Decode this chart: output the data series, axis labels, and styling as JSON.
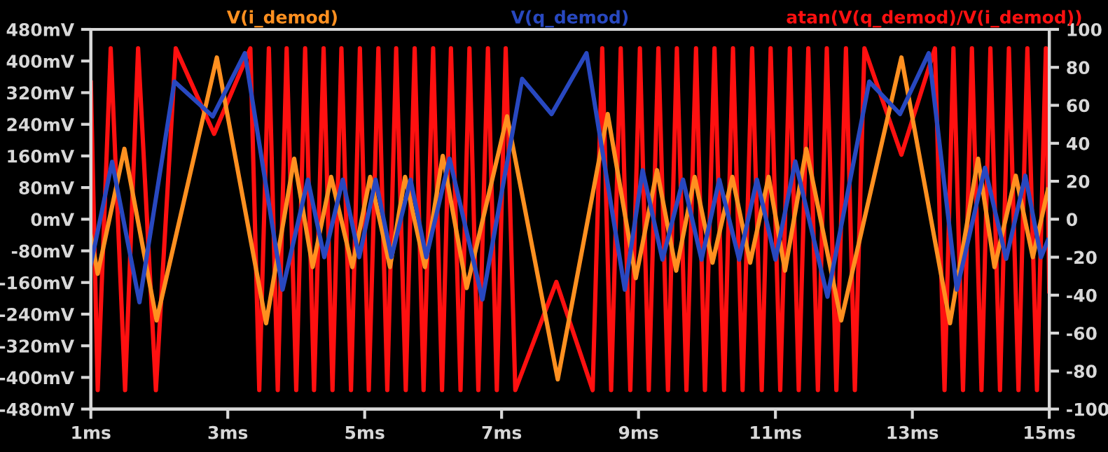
{
  "chart_data": {
    "type": "line",
    "legend": "top",
    "grid": false,
    "line_style": "solid",
    "marker": "none",
    "xlim": [
      1,
      15
    ],
    "xticks": [
      {
        "value": 1,
        "label": "1ms"
      },
      {
        "value": 3,
        "label": "3ms"
      },
      {
        "value": 5,
        "label": "5ms"
      },
      {
        "value": 7,
        "label": "7ms"
      },
      {
        "value": 9,
        "label": "9ms"
      },
      {
        "value": 11,
        "label": "11ms"
      },
      {
        "value": 13,
        "label": "13ms"
      },
      {
        "value": 15,
        "label": "15ms"
      }
    ],
    "ylim": [
      -480,
      480
    ],
    "yticks": [
      {
        "value": -480,
        "label": "-480mV"
      },
      {
        "value": -400,
        "label": "-400mV"
      },
      {
        "value": -320,
        "label": "-320mV"
      },
      {
        "value": -240,
        "label": "-240mV"
      },
      {
        "value": -160,
        "label": "-160mV"
      },
      {
        "value": -80,
        "label": "-80mV"
      },
      {
        "value": 0,
        "label": "0mV"
      },
      {
        "value": 80,
        "label": "80mV"
      },
      {
        "value": 160,
        "label": "160mV"
      },
      {
        "value": 240,
        "label": "240mV"
      },
      {
        "value": 320,
        "label": "320mV"
      },
      {
        "value": 400,
        "label": "400mV"
      },
      {
        "value": 480,
        "label": "480mV"
      }
    ],
    "y2lim": [
      -100,
      100
    ],
    "y2ticks": [
      -100,
      -80,
      -60,
      -40,
      -20,
      0,
      20,
      40,
      60,
      80,
      100
    ],
    "series": [
      {
        "name": "V(i_demod)",
        "color": "#ff9020",
        "x": [
          1.0,
          1.1,
          1.49,
          1.96,
          2.84,
          3.56,
          3.97,
          4.24,
          4.51,
          4.82,
          5.08,
          5.37,
          5.59,
          5.88,
          6.14,
          6.49,
          7.08,
          7.82,
          8.55,
          8.96,
          9.27,
          9.55,
          9.82,
          10.08,
          10.37,
          10.63,
          10.9,
          11.14,
          11.45,
          11.96,
          12.84,
          13.55,
          13.96,
          14.2,
          14.51,
          14.76,
          14.98
        ],
        "values": [
          -43,
          -138,
          178,
          -256,
          409,
          -263,
          153,
          -121,
          107,
          -121,
          107,
          -121,
          107,
          -121,
          160,
          -174,
          260,
          -405,
          266,
          -149,
          124,
          -130,
          107,
          -110,
          107,
          -110,
          107,
          -130,
          178,
          -256,
          409,
          -263,
          153,
          -121,
          110,
          -96,
          75
        ]
      },
      {
        "name": "V(q_demod)",
        "color": "#2848c0",
        "x": [
          1.0,
          1.31,
          1.71,
          2.22,
          2.78,
          3.25,
          3.8,
          4.17,
          4.41,
          4.68,
          4.92,
          5.16,
          5.39,
          5.67,
          5.9,
          6.24,
          6.72,
          7.3,
          7.73,
          8.24,
          8.8,
          9.06,
          9.35,
          9.65,
          9.92,
          10.18,
          10.47,
          10.73,
          11.0,
          11.29,
          11.76,
          12.37,
          12.82,
          13.24,
          13.65,
          14.06,
          14.37,
          14.65,
          14.88,
          14.98
        ],
        "values": [
          -114,
          145,
          -210,
          348,
          260,
          420,
          -178,
          100,
          -96,
          100,
          -96,
          100,
          -96,
          100,
          -96,
          153,
          -203,
          355,
          266,
          420,
          -178,
          124,
          -102,
          100,
          -102,
          100,
          -102,
          100,
          -102,
          146,
          -196,
          348,
          266,
          420,
          -178,
          130,
          -100,
          110,
          -96,
          -53
        ]
      },
      {
        "name": "atan(V(q_demod)/V(i_demod))",
        "color": "#ff1010",
        "axis": "y2",
        "x": [
          1.0,
          1.1,
          1.29,
          1.5,
          1.69,
          1.95,
          2.24,
          2.8,
          3.33,
          3.46,
          3.6,
          3.73,
          3.86,
          4.0,
          4.13,
          4.26,
          4.4,
          4.53,
          4.66,
          4.8,
          4.93,
          5.06,
          5.2,
          5.33,
          5.46,
          5.6,
          5.73,
          5.86,
          6.0,
          6.13,
          6.26,
          6.4,
          6.53,
          6.66,
          6.8,
          6.93,
          7.06,
          7.2,
          7.8,
          8.33,
          8.47,
          8.6,
          8.74,
          8.88,
          9.02,
          9.15,
          9.29,
          9.43,
          9.56,
          9.7,
          9.84,
          9.97,
          10.11,
          10.25,
          10.38,
          10.52,
          10.66,
          10.8,
          10.93,
          11.07,
          11.21,
          11.34,
          11.48,
          11.62,
          11.75,
          11.89,
          12.03,
          12.16,
          12.3,
          12.84,
          13.33,
          13.47,
          13.6,
          13.74,
          13.87,
          14.01,
          14.14,
          14.28,
          14.41,
          14.55,
          14.68,
          14.82,
          14.95,
          15.0
        ],
        "values": [
          72,
          -90,
          90,
          -90,
          90,
          -90,
          90,
          45,
          90,
          -90,
          90,
          -90,
          90,
          -90,
          90,
          -90,
          90,
          -90,
          90,
          -90,
          90,
          -90,
          90,
          -90,
          90,
          -90,
          90,
          -90,
          90,
          -90,
          90,
          -90,
          90,
          -90,
          90,
          -90,
          90,
          -90,
          -33,
          -90,
          90,
          -90,
          90,
          -90,
          90,
          -90,
          90,
          -90,
          90,
          -90,
          90,
          -90,
          90,
          -90,
          90,
          -90,
          90,
          -90,
          90,
          -90,
          90,
          -90,
          90,
          -90,
          90,
          -90,
          90,
          -90,
          90,
          34,
          90,
          -90,
          90,
          -90,
          90,
          -90,
          90,
          -90,
          90,
          -90,
          90,
          -90,
          90,
          -38
        ]
      }
    ]
  }
}
